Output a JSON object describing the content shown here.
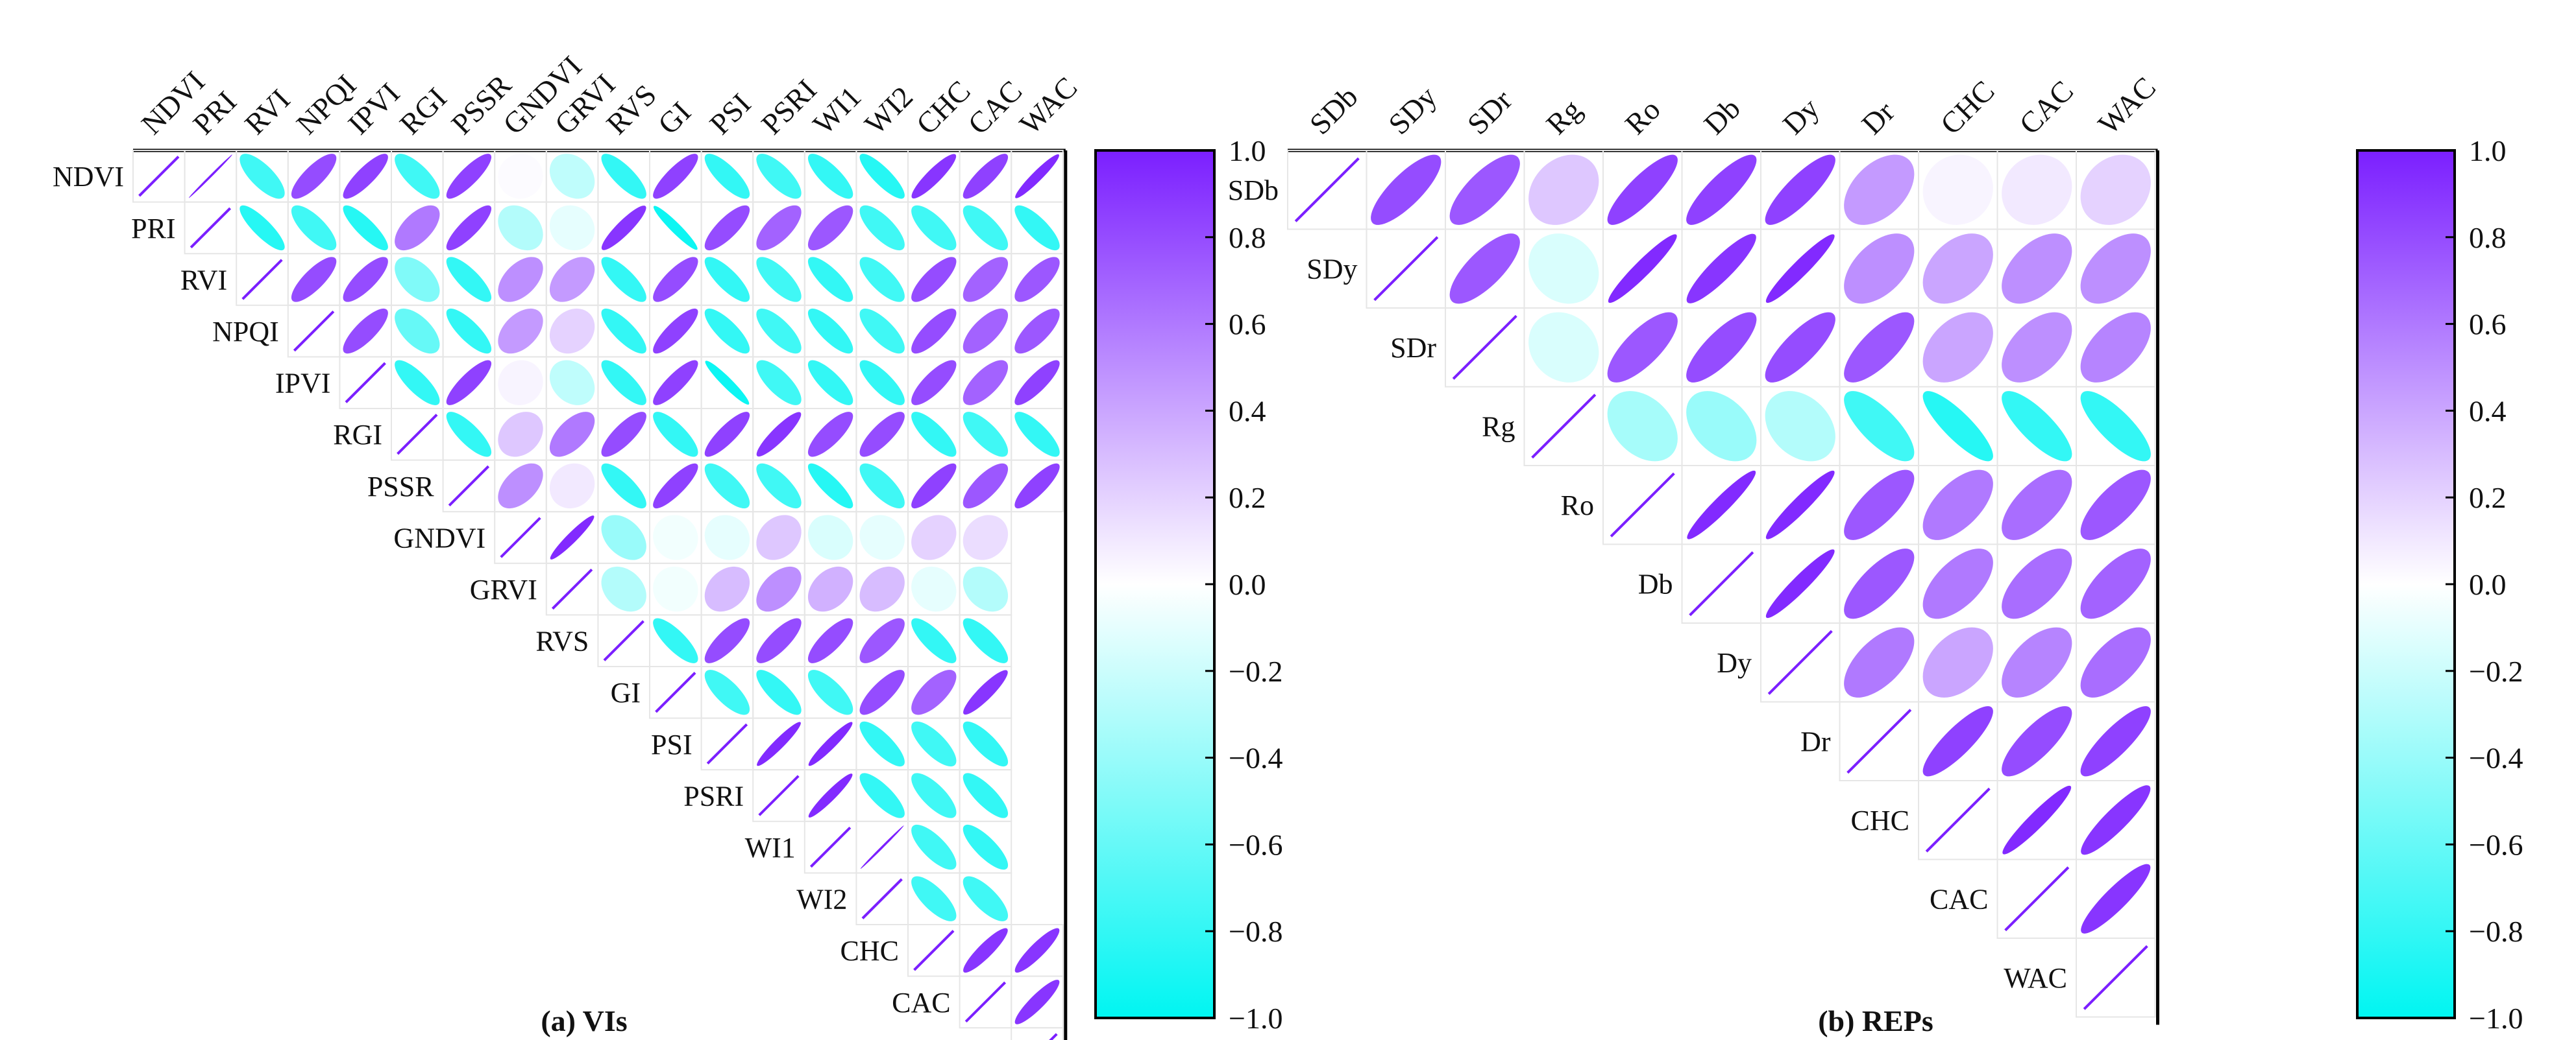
{
  "chart_data": [
    {
      "type": "heatmap",
      "subtype": "correlation-ellipse-upper-triangle",
      "caption": "(a) VIs",
      "variables": [
        "NDVI",
        "PRI",
        "RVI",
        "NPQI",
        "IPVI",
        "RGI",
        "PSSR",
        "GNDVI",
        "GRVI",
        "RVS",
        "GI",
        "PSI",
        "PSRI",
        "WI1",
        "WI2",
        "CHC",
        "CAC",
        "WAC"
      ],
      "rows": [
        [
          1.0,
          -0.75,
          0.8,
          0.85,
          -0.75,
          0.85,
          0.02,
          -0.25,
          -0.8,
          0.85,
          -0.8,
          -0.75,
          -0.8,
          -0.85,
          0.9,
          0.85,
          0.95
        ],
        [
          -0.85,
          -0.75,
          -0.85,
          0.6,
          0.85,
          -0.3,
          -0.1,
          0.9,
          -0.95,
          0.8,
          0.7,
          0.75,
          -0.75,
          -0.75,
          -0.75,
          -0.8
        ],
        [
          0.8,
          0.8,
          -0.5,
          -0.8,
          0.5,
          0.45,
          -0.8,
          0.8,
          -0.8,
          -0.75,
          -0.8,
          -0.75,
          0.8,
          0.7,
          0.75
        ],
        [
          0.8,
          -0.6,
          -0.8,
          0.45,
          0.2,
          -0.8,
          0.85,
          -0.8,
          -0.75,
          -0.8,
          -0.75,
          0.8,
          0.7,
          0.75
        ],
        [
          -0.8,
          0.85,
          0.05,
          -0.25,
          -0.8,
          0.85,
          -0.95,
          -0.75,
          -0.8,
          -0.8,
          0.8,
          0.7,
          0.85
        ],
        [
          -0.8,
          0.25,
          0.6,
          0.8,
          -0.8,
          0.85,
          0.9,
          0.8,
          0.8,
          -0.8,
          -0.75,
          -0.8
        ],
        [
          0.5,
          0.1,
          -0.8,
          0.85,
          -0.75,
          -0.75,
          -0.85,
          -0.75,
          0.85,
          0.75,
          0.85
        ],
        [
          0.95,
          -0.4,
          -0.05,
          -0.1,
          0.25,
          -0.15,
          -0.1,
          0.2,
          0.15
        ],
        [
          -0.3,
          -0.05,
          0.3,
          0.5,
          0.35,
          0.3,
          -0.1,
          -0.3
        ],
        [
          -0.8,
          0.8,
          0.8,
          0.8,
          0.75,
          -0.8,
          -0.8
        ],
        [
          -0.75,
          -0.8,
          -0.75,
          0.8,
          0.7,
          0.9
        ],
        [
          0.95,
          0.95,
          -0.8,
          -0.75,
          -0.8
        ],
        [
          0.95,
          -0.8,
          -0.75,
          -0.8
        ],
        [
          1.0,
          -0.75,
          -0.8
        ],
        [
          -0.75,
          -0.75
        ],
        [
          0.9,
          0.9
        ],
        [
          0.9
        ]
      ]
    },
    {
      "type": "heatmap",
      "subtype": "correlation-ellipse-upper-triangle",
      "caption": "(b) REPs",
      "variables": [
        "SDb",
        "SDy",
        "SDr",
        "Rg",
        "Ro",
        "Db",
        "Dy",
        "Dr",
        "CHC",
        "CAC",
        "WAC"
      ],
      "rows": [
        [
          0.8,
          0.75,
          0.25,
          0.85,
          0.85,
          0.85,
          0.45,
          0.05,
          0.1,
          0.2
        ],
        [
          0.75,
          -0.15,
          0.95,
          0.9,
          0.95,
          0.5,
          0.4,
          0.5,
          0.5
        ],
        [
          -0.15,
          0.75,
          0.8,
          0.8,
          0.75,
          0.4,
          0.5,
          0.55
        ],
        [
          -0.35,
          -0.4,
          -0.3,
          -0.75,
          -0.85,
          -0.8,
          -0.8
        ],
        [
          0.95,
          0.95,
          0.75,
          0.6,
          0.65,
          0.75
        ],
        [
          0.95,
          0.75,
          0.6,
          0.65,
          0.7
        ],
        [
          0.6,
          0.4,
          0.55,
          0.65
        ],
        [
          0.85,
          0.8,
          0.85
        ],
        [
          0.95,
          0.9
        ],
        [
          0.9
        ]
      ]
    }
  ],
  "colorbar": {
    "ticks": [
      "1.0",
      "0.8",
      "0.6",
      "0.4",
      "0.2",
      "0.0",
      "−0.2",
      "−0.4",
      "−0.6",
      "−0.8",
      "−1.0"
    ],
    "colors": {
      "positive": "#7B1FFF",
      "zero": "#FFFFFF",
      "negative": "#00F5F2"
    }
  },
  "colors": {
    "diagonal_line": "#7B1FFF",
    "cell_grid": "#e6e6e6",
    "axis": "#000000"
  }
}
